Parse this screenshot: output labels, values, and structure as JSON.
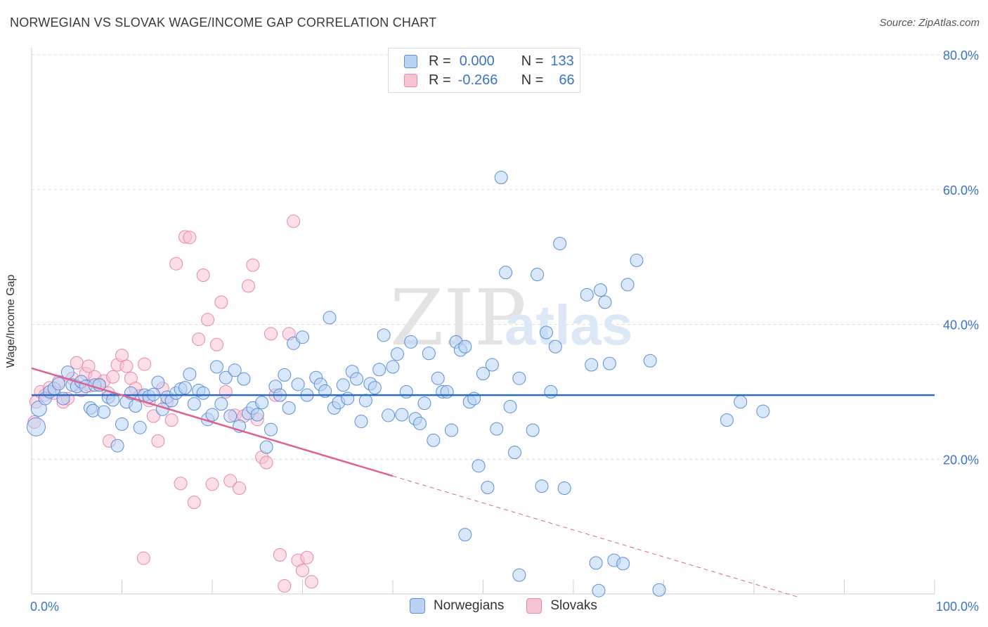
{
  "title": "NORWEGIAN VS SLOVAK WAGE/INCOME GAP CORRELATION CHART",
  "source": "Source: ZipAtlas.com",
  "watermark_left": "ZIP",
  "watermark_right": "atlas",
  "legend": {
    "r_label": "R =",
    "n_label": "N =",
    "rows": [
      {
        "r": "0.000",
        "n": "133",
        "fill": "#b9d3f5",
        "stroke": "#5b8fd6"
      },
      {
        "r": "-0.266",
        "n": "66",
        "fill": "#f8c3d4",
        "stroke": "#e48aa8"
      }
    ]
  },
  "chart_data": {
    "type": "scatter",
    "title": "NORWEGIAN VS SLOVAK WAGE/INCOME GAP CORRELATION CHART",
    "xlabel": "",
    "ylabel": "Wage/Income Gap",
    "xlim": [
      0,
      100
    ],
    "ylim": [
      0,
      80
    ],
    "x_tick_labels": [
      "0.0%",
      "100.0%"
    ],
    "y_ticks": [
      20,
      40,
      60,
      80
    ],
    "y_tick_labels": [
      "20.0%",
      "40.0%",
      "60.0%",
      "80.0%"
    ],
    "grid": true,
    "series": [
      {
        "name": "Norwegians",
        "color": "#5b8fd6",
        "fill": "#b9d3f5",
        "regression": {
          "intercept": 29.5,
          "slope": 0,
          "x_range": [
            0,
            100
          ],
          "dashed_after": 100
        },
        "points": [
          [
            0.5,
            24.8
          ],
          [
            0.8,
            27.5
          ],
          [
            1.5,
            29
          ],
          [
            2.0,
            30
          ],
          [
            2.5,
            30.5
          ],
          [
            3.0,
            31.2
          ],
          [
            3.5,
            29
          ],
          [
            4.0,
            32.9
          ],
          [
            4.5,
            31
          ],
          [
            5.0,
            30.8
          ],
          [
            5.5,
            31.5
          ],
          [
            6.0,
            30.8
          ],
          [
            6.5,
            27.6
          ],
          [
            6.8,
            27.2
          ],
          [
            7.0,
            31
          ],
          [
            7.5,
            31
          ],
          [
            8.0,
            27
          ],
          [
            8.5,
            29.2
          ],
          [
            9.0,
            28.8
          ],
          [
            9.5,
            22
          ],
          [
            10.0,
            25.2
          ],
          [
            10.5,
            28.5
          ],
          [
            11.0,
            29.8
          ],
          [
            11.5,
            27.9
          ],
          [
            12.0,
            24.7
          ],
          [
            12.5,
            29.5
          ],
          [
            13.0,
            29.3
          ],
          [
            13.5,
            29.6
          ],
          [
            14.0,
            31.4
          ],
          [
            14.5,
            27.4
          ],
          [
            15.0,
            29.2
          ],
          [
            15.5,
            28.7
          ],
          [
            16.0,
            29.8
          ],
          [
            16.5,
            30.4
          ],
          [
            17.0,
            30.6
          ],
          [
            17.5,
            32.6
          ],
          [
            18.0,
            28.2
          ],
          [
            18.5,
            30.2
          ],
          [
            19.0,
            29.8
          ],
          [
            19.5,
            25.9
          ],
          [
            20.0,
            26.6
          ],
          [
            20.5,
            33.7
          ],
          [
            21.0,
            28.2
          ],
          [
            21.5,
            32.1
          ],
          [
            22.0,
            26.4
          ],
          [
            22.5,
            33.2
          ],
          [
            23.0,
            24.9
          ],
          [
            23.5,
            31.9
          ],
          [
            24.0,
            26.8
          ],
          [
            24.5,
            27.6
          ],
          [
            25.0,
            26.6
          ],
          [
            25.5,
            28.4
          ],
          [
            26.0,
            21.8
          ],
          [
            26.5,
            24.4
          ],
          [
            27.0,
            30.8
          ],
          [
            27.5,
            29.5
          ],
          [
            28.0,
            32.5
          ],
          [
            28.5,
            27.6
          ],
          [
            29.0,
            37.2
          ],
          [
            29.5,
            31.1
          ],
          [
            30.0,
            38.1
          ],
          [
            30.5,
            29.5
          ],
          [
            31.5,
            32.1
          ],
          [
            32.0,
            31.1
          ],
          [
            32.5,
            30.1
          ],
          [
            33.0,
            41
          ],
          [
            33.5,
            27.6
          ],
          [
            34.0,
            28.4
          ],
          [
            34.5,
            31
          ],
          [
            35.0,
            29
          ],
          [
            35.5,
            33
          ],
          [
            36.0,
            31.9
          ],
          [
            36.5,
            25.6
          ],
          [
            37.0,
            28.7
          ],
          [
            37.5,
            31.2
          ],
          [
            38.0,
            30.6
          ],
          [
            38.5,
            33.3
          ],
          [
            39.0,
            38.4
          ],
          [
            39.5,
            26.5
          ],
          [
            40.0,
            33.7
          ],
          [
            40.5,
            35.6
          ],
          [
            41.0,
            26.6
          ],
          [
            41.5,
            30
          ],
          [
            42.0,
            37.4
          ],
          [
            42.5,
            26
          ],
          [
            43.0,
            25.3
          ],
          [
            43.5,
            28.3
          ],
          [
            44.0,
            35.7
          ],
          [
            44.5,
            22.8
          ],
          [
            45.0,
            32
          ],
          [
            45.5,
            30
          ],
          [
            46.0,
            30
          ],
          [
            46.5,
            24.3
          ],
          [
            47.0,
            37.4
          ],
          [
            47.5,
            36.2
          ],
          [
            48.0,
            36.7
          ],
          [
            48.5,
            28.5
          ],
          [
            49.0,
            29
          ],
          [
            49.5,
            19
          ],
          [
            50.0,
            32.7
          ],
          [
            50.5,
            15.8
          ],
          [
            51.0,
            34
          ],
          [
            51.5,
            24.5
          ],
          [
            52.0,
            61.8
          ],
          [
            52.5,
            47.7
          ],
          [
            53.0,
            27.8
          ],
          [
            53.5,
            21
          ],
          [
            54.0,
            32
          ],
          [
            55.5,
            24.3
          ],
          [
            56.0,
            47.4
          ],
          [
            56.5,
            16
          ],
          [
            57.0,
            38.8
          ],
          [
            57.5,
            30
          ],
          [
            58.0,
            36.7
          ],
          [
            58.5,
            52
          ],
          [
            59.0,
            15.7
          ],
          [
            61.5,
            44.4
          ],
          [
            62.0,
            34
          ],
          [
            63.0,
            45.1
          ],
          [
            63.5,
            43.3
          ],
          [
            64.0,
            34.2
          ],
          [
            66.0,
            45.9
          ],
          [
            67.0,
            49.5
          ],
          [
            68.5,
            34.6
          ],
          [
            77.0,
            25.8
          ],
          [
            78.5,
            28.5
          ],
          [
            81.0,
            27.1
          ],
          [
            48.0,
            8.8
          ],
          [
            54.0,
            2.8
          ],
          [
            62.5,
            4.6
          ],
          [
            64.5,
            5
          ],
          [
            65.5,
            4.5
          ],
          [
            62.8,
            0.5
          ],
          [
            69.5,
            0.6
          ]
        ]
      },
      {
        "name": "Slovaks",
        "color": "#e48aa8",
        "fill": "#f8c3d4",
        "regression": {
          "intercept": 33.5,
          "slope": -0.4,
          "x_range": [
            0,
            85
          ],
          "dashed_after": 40
        },
        "points": [
          [
            0.3,
            25.5
          ],
          [
            0.5,
            28.5
          ],
          [
            1.0,
            30
          ],
          [
            1.5,
            29.5
          ],
          [
            2.0,
            30.6
          ],
          [
            2.5,
            29.8
          ],
          [
            3.0,
            31.5
          ],
          [
            3.5,
            28.5
          ],
          [
            4.0,
            29
          ],
          [
            4.5,
            32
          ],
          [
            5.0,
            34.3
          ],
          [
            5.5,
            30.2
          ],
          [
            6.0,
            32.7
          ],
          [
            6.5,
            30.9
          ],
          [
            7.0,
            32.2
          ],
          [
            7.5,
            31.1
          ],
          [
            8.0,
            31.6
          ],
          [
            8.5,
            29.8
          ],
          [
            9.0,
            32.2
          ],
          [
            9.5,
            34
          ],
          [
            10.0,
            35.4
          ],
          [
            10.5,
            33.8
          ],
          [
            11.0,
            32
          ],
          [
            11.5,
            30.5
          ],
          [
            12.0,
            29.4
          ],
          [
            12.5,
            34.1
          ],
          [
            13.0,
            28.7
          ],
          [
            13.5,
            26.4
          ],
          [
            14.0,
            22.7
          ],
          [
            14.5,
            30.5
          ],
          [
            15.0,
            28.5
          ],
          [
            15.5,
            25.8
          ],
          [
            16.0,
            49
          ],
          [
            16.5,
            16.4
          ],
          [
            17.0,
            53
          ],
          [
            17.5,
            52.9
          ],
          [
            18.0,
            13.6
          ],
          [
            18.5,
            37.8
          ],
          [
            19.0,
            47.3
          ],
          [
            19.5,
            40.7
          ],
          [
            20.0,
            16.3
          ],
          [
            20.5,
            37
          ],
          [
            21.0,
            43.3
          ],
          [
            21.5,
            30
          ],
          [
            22.0,
            16.8
          ],
          [
            22.5,
            26.5
          ],
          [
            23.0,
            15.7
          ],
          [
            23.5,
            26.4
          ],
          [
            24.0,
            45.7
          ],
          [
            24.5,
            48.8
          ],
          [
            25.0,
            25.9
          ],
          [
            25.5,
            20.3
          ],
          [
            26.0,
            19.5
          ],
          [
            26.5,
            38.6
          ],
          [
            27.0,
            29.5
          ],
          [
            27.5,
            5.8
          ],
          [
            28.0,
            1.2
          ],
          [
            28.5,
            38.6
          ],
          [
            29.0,
            55.3
          ],
          [
            29.5,
            5
          ],
          [
            30.0,
            3.5
          ],
          [
            30.5,
            5.4
          ],
          [
            31.0,
            1.8
          ],
          [
            12.4,
            5.3
          ],
          [
            8.6,
            22.7
          ],
          [
            6.3,
            33.8
          ]
        ]
      }
    ]
  },
  "bottom_legend": [
    {
      "label": "Norwegians",
      "fill": "#b9d3f5",
      "stroke": "#5b8fd6"
    },
    {
      "label": "Slovaks",
      "fill": "#f8c3d4",
      "stroke": "#e48aa8"
    }
  ]
}
